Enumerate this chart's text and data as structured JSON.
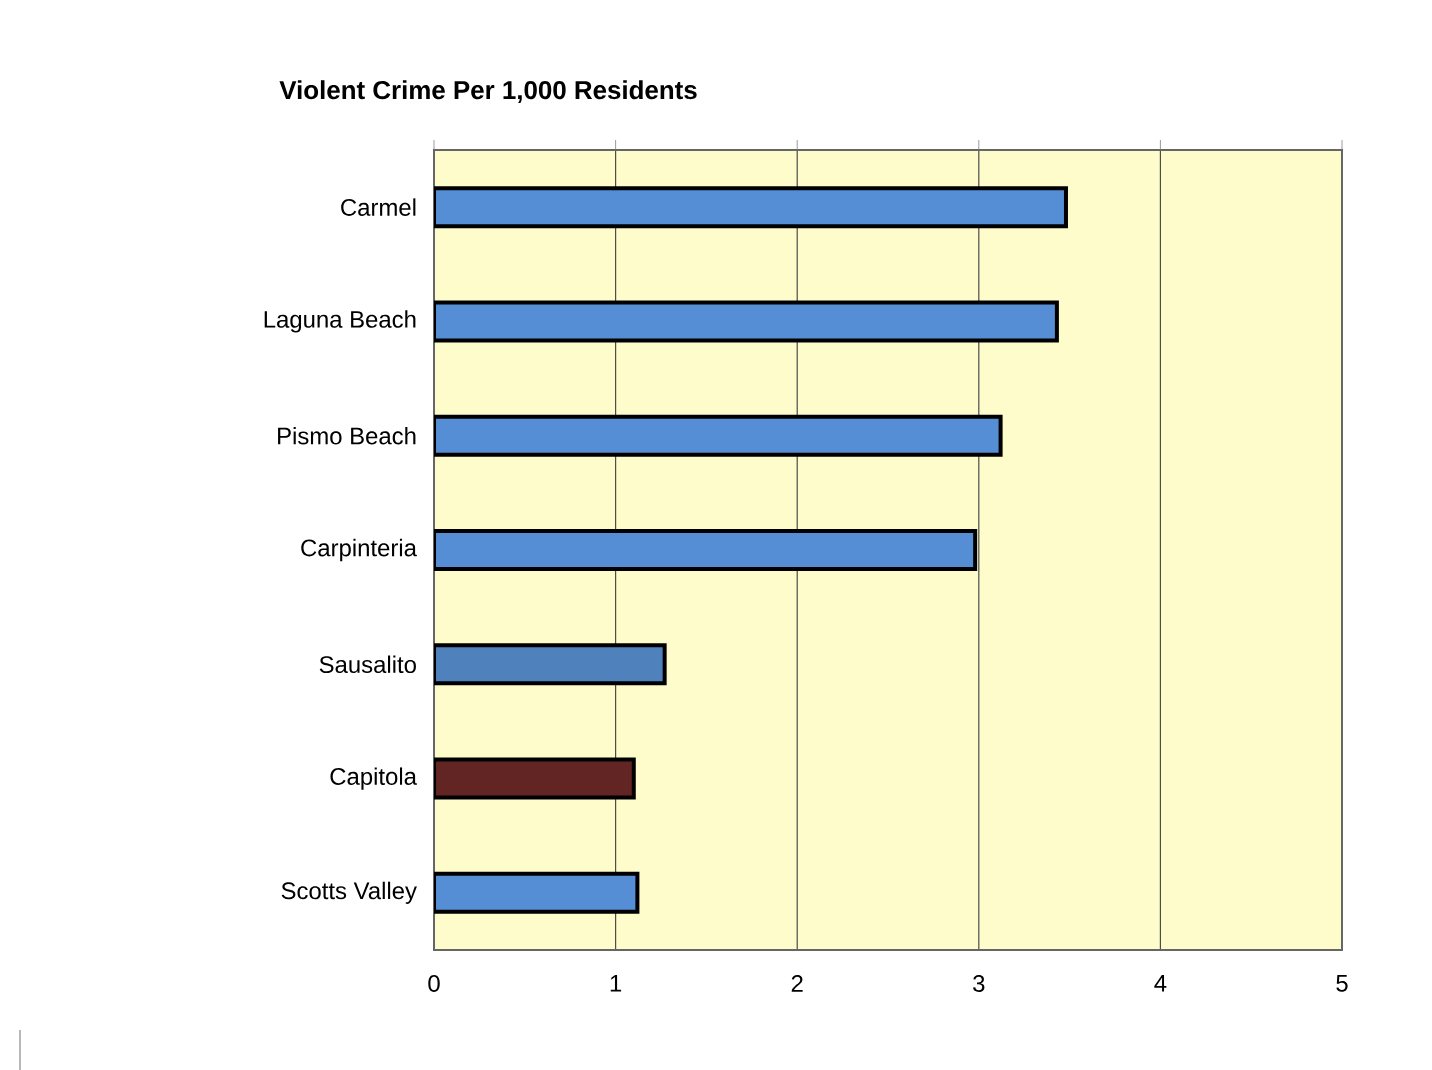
{
  "chart_data": {
    "type": "bar",
    "orientation": "horizontal",
    "title": "Violent Crime Per 1,000 Residents",
    "categories": [
      "Carmel",
      "Laguna Beach",
      "Pismo Beach",
      "Carpinteria",
      "Sausalito",
      "Capitola",
      "Scotts Valley"
    ],
    "values": [
      3.48,
      3.43,
      3.12,
      2.98,
      1.27,
      1.1,
      1.12
    ],
    "colors": [
      "#558ed5",
      "#558ed5",
      "#558ed5",
      "#558ed5",
      "#4f81bd",
      "#632523",
      "#558ed5"
    ],
    "xlim": [
      0,
      5
    ],
    "xticks": [
      0,
      1,
      2,
      3,
      4,
      5
    ],
    "grid": "x"
  }
}
